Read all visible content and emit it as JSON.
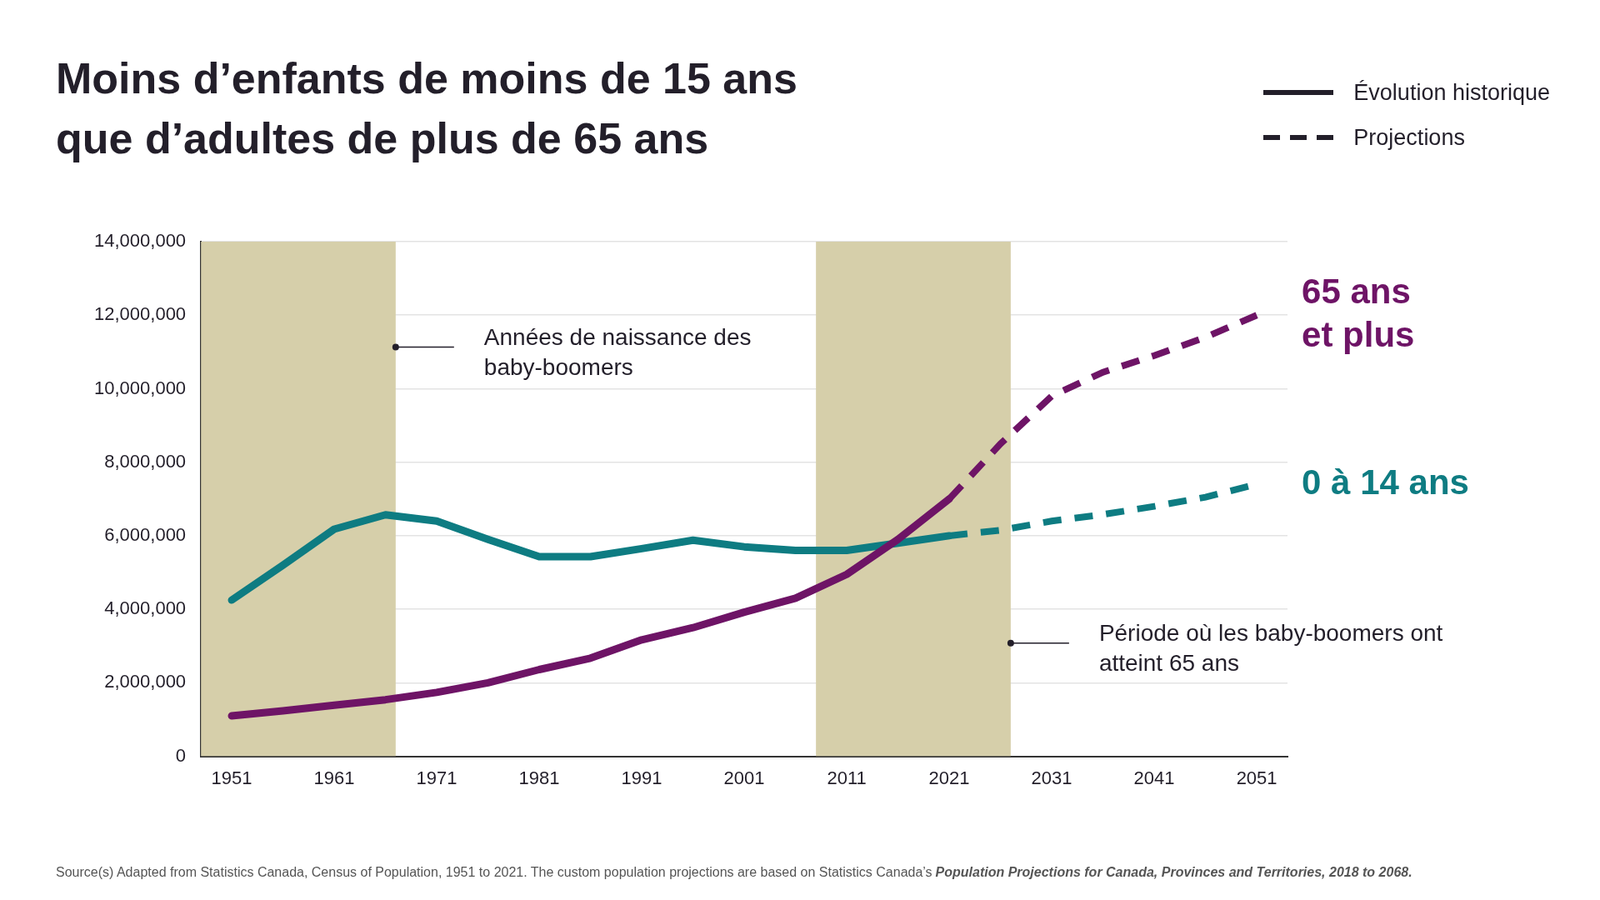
{
  "chart_data": {
    "type": "line",
    "title": "Moins d’enfants de moins de 15 ans que d’adultes de plus de 65 ans",
    "x": [
      1951,
      1956,
      1961,
      1966,
      1971,
      1976,
      1981,
      1986,
      1991,
      1996,
      2001,
      2006,
      2011,
      2016,
      2021,
      2026,
      2031,
      2036,
      2041,
      2046,
      2051
    ],
    "xlim": [
      1948,
      2054
    ],
    "xticks": [
      1951,
      1961,
      1971,
      1981,
      1991,
      2001,
      2011,
      2021,
      2031,
      2041,
      2051
    ],
    "ylim": [
      0,
      14000000
    ],
    "yticks": [
      0,
      {
        "value": 2000000,
        "label": "2,000,000"
      },
      {
        "value": 4000000,
        "label": "4,000,000"
      },
      {
        "value": 6000000,
        "label": "6,000,000"
      },
      {
        "value": 8000000,
        "label": "8,000,000"
      },
      {
        "value": 10000000,
        "label": "10,000,000"
      },
      {
        "value": 12000000,
        "label": "12,000,000"
      },
      {
        "value": 14000000,
        "label": "14,000,000"
      }
    ],
    "grid": true,
    "legend": "top-right",
    "legend_items": [
      {
        "label": "Évolution historique",
        "line_style": "solid"
      },
      {
        "label": "Projections",
        "line_style": "dashed"
      }
    ],
    "projection_start": 2021,
    "series": [
      {
        "name": "65 ans et plus",
        "color": "#6e1466",
        "values": [
          1100000,
          1240000,
          1390000,
          1540000,
          1740000,
          2000000,
          2360000,
          2670000,
          3170000,
          3500000,
          3920000,
          4300000,
          4950000,
          5900000,
          7000000,
          8500000,
          9800000,
          10450000,
          10900000,
          11400000,
          12000000
        ]
      },
      {
        "name": "0 à 14 ans",
        "color": "#0e7c82",
        "values": [
          4250000,
          5200000,
          6180000,
          6570000,
          6400000,
          5900000,
          5430000,
          5430000,
          5650000,
          5880000,
          5700000,
          5600000,
          5600000,
          5800000,
          6000000,
          6150000,
          6400000,
          6580000,
          6800000,
          7050000,
          7400000
        ]
      }
    ],
    "shaded_periods": [
      {
        "text": "Années de naissance des baby-boomers",
        "from": 1948,
        "to": 1967
      },
      {
        "text": "Période où les baby-boomers ont atteint 65 ans",
        "from": 2008,
        "to": 2027
      }
    ],
    "source": {
      "text": "Source(s) Adapted from Statistics Canada, Census of Population, 1951 to 2021. The custom population projections are based on Statistics Canada’s",
      "emphasis": "Population Projections for Canada, Provinces and Territories, 2018 to 2068."
    }
  }
}
